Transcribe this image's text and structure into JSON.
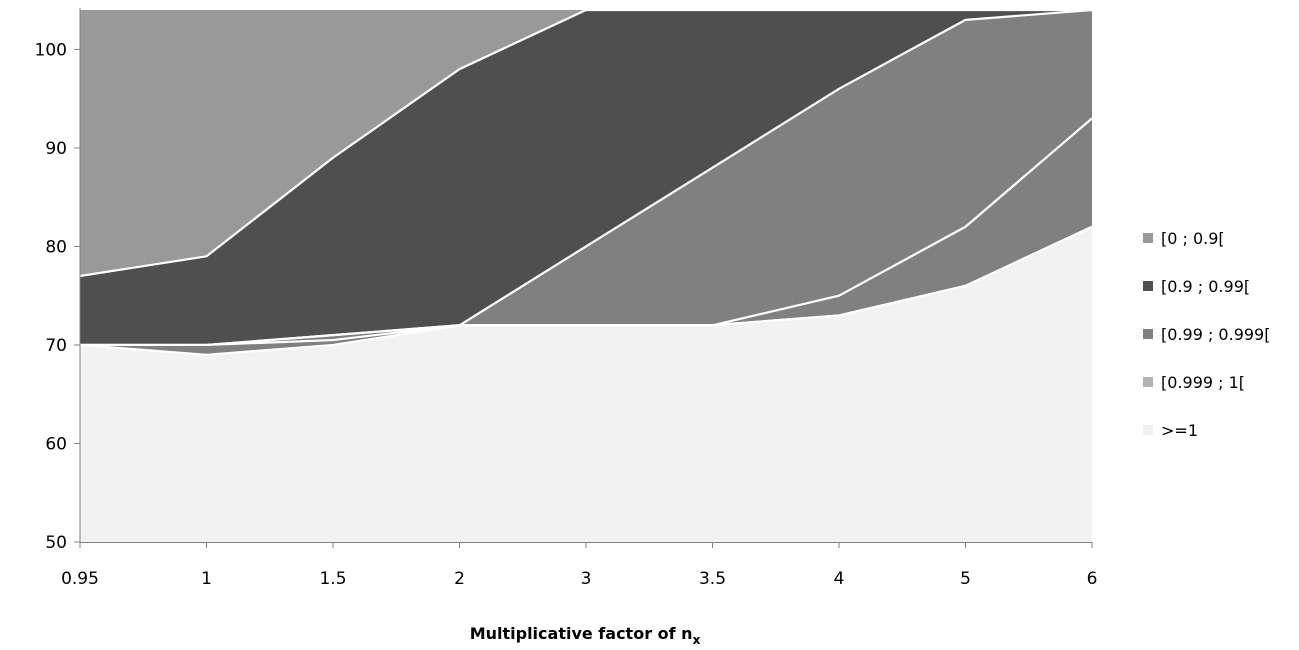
{
  "chart_data": {
    "type": "area",
    "stacked_bands": true,
    "categories": [
      "0.95",
      "1",
      "1.5",
      "2",
      "3",
      "3.5",
      "4",
      "5",
      "6"
    ],
    "xlabel": {
      "main": "Multiplicative factor of n",
      "subscript": "x"
    },
    "ylabel": "",
    "ylim": [
      50,
      104
    ],
    "yticks": [
      50,
      60,
      70,
      80,
      90,
      100
    ],
    "grid": false,
    "legend_position": "right",
    "boundaries": [
      {
        "name": "b1",
        "values": [
          70,
          69,
          70,
          72,
          72,
          72,
          73,
          76,
          82
        ]
      },
      {
        "name": "b2",
        "values": [
          70,
          70,
          70.5,
          72,
          72,
          72,
          73,
          76,
          82
        ]
      },
      {
        "name": "b3",
        "values": [
          70,
          70,
          71,
          72,
          72,
          72,
          75,
          82,
          93
        ]
      },
      {
        "name": "b4",
        "values": [
          70,
          70,
          71,
          72,
          80,
          88,
          96,
          103,
          104
        ]
      },
      {
        "name": "b5",
        "values": [
          77,
          79,
          89,
          98,
          104,
          104,
          104,
          104,
          104
        ]
      }
    ],
    "series": [
      {
        "name": ">=1",
        "color": "#f2f2f2",
        "lower": null,
        "upper": "b1"
      },
      {
        "name": "[0.999 ; 1[",
        "color": "#b3b3b3",
        "lower": "b2",
        "upper": "b3"
      },
      {
        "name": "[0.99 ; 0.999[",
        "color": "#808080",
        "lower": "b1",
        "upper": "b4"
      },
      {
        "name": "[0.9 ; 0.99[",
        "color": "#4f4f4f",
        "lower": "b4",
        "upper": "b5"
      },
      {
        "name": "[0 ; 0.9[",
        "color": "#999999",
        "lower": "b5",
        "upper": null
      }
    ],
    "legend_order": [
      "[0 ; 0.9[",
      "[0.9 ; 0.99[",
      "[0.99 ; 0.999[",
      "[0.999 ; 1[",
      ">=1"
    ],
    "legend_colors": [
      "#999999",
      "#4f4f4f",
      "#808080",
      "#b3b3b3",
      "#f2f2f2"
    ]
  }
}
